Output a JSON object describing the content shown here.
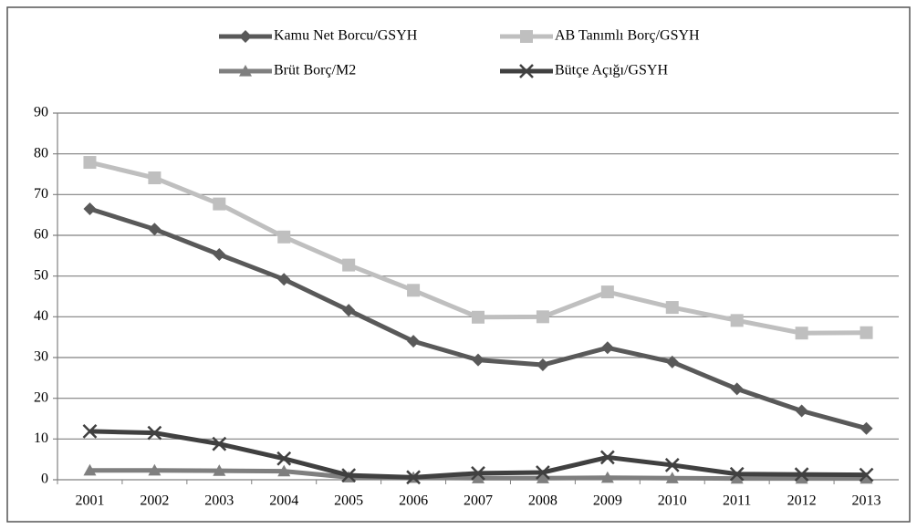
{
  "chart_data": {
    "type": "line",
    "categories": [
      "2001",
      "2002",
      "2003",
      "2004",
      "2005",
      "2006",
      "2007",
      "2008",
      "2009",
      "2010",
      "2011",
      "2012",
      "2013"
    ],
    "series": [
      {
        "name": "Kamu Net Borcu/GSYH",
        "color": "#595959",
        "marker": "diamond",
        "values": [
          66.5,
          61.5,
          55.3,
          49.2,
          41.6,
          34.0,
          29.4,
          28.2,
          32.4,
          28.9,
          22.3,
          16.9,
          12.6
        ]
      },
      {
        "name": "AB Tanımlı Borç/GSYH",
        "color": "#bfbfbf",
        "marker": "square",
        "values": [
          77.9,
          74.1,
          67.7,
          59.6,
          52.7,
          46.5,
          39.9,
          40.0,
          46.1,
          42.3,
          39.1,
          36.0,
          36.1
        ]
      },
      {
        "name": "Brüt Borç/M2",
        "color": "#7f7f7f",
        "marker": "triangle",
        "values": [
          2.3,
          2.3,
          2.2,
          2.1,
          0.6,
          0.5,
          0.4,
          0.4,
          0.5,
          0.4,
          0.3,
          0.3,
          0.3
        ]
      },
      {
        "name": "Bütçe Açığı/GSYH",
        "color": "#404040",
        "marker": "x",
        "values": [
          11.9,
          11.5,
          8.8,
          5.2,
          1.1,
          0.6,
          1.6,
          1.8,
          5.5,
          3.6,
          1.4,
          1.3,
          1.2
        ]
      }
    ],
    "ylim": [
      0,
      90
    ],
    "yticks": [
      0,
      10,
      20,
      30,
      40,
      50,
      60,
      70,
      80,
      90
    ],
    "grid": true,
    "legend": "top"
  }
}
